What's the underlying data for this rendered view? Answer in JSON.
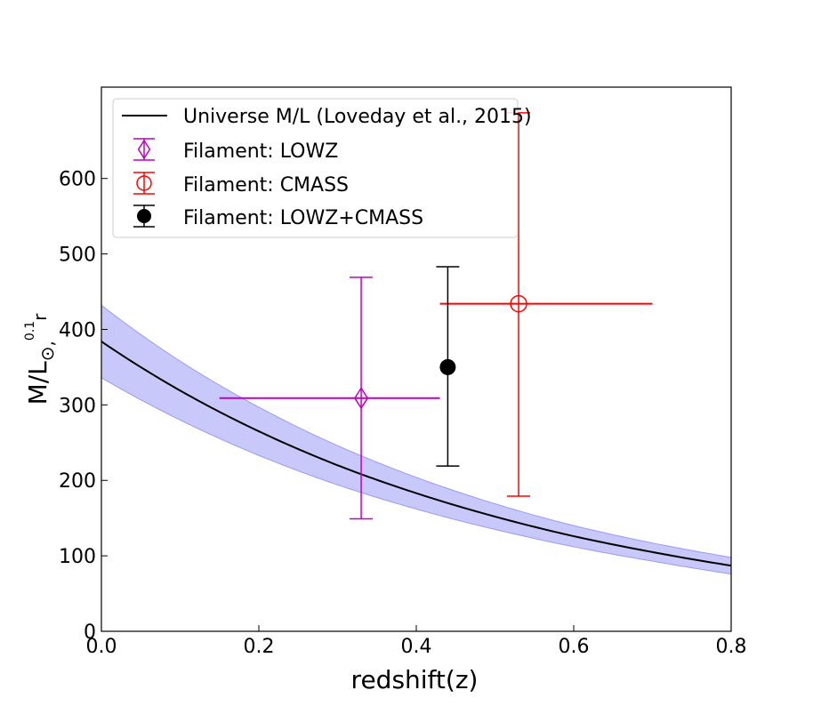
{
  "chart_data": {
    "type": "scatter",
    "xlabel": "redshift(z)",
    "ylabel": {
      "main": "M/L",
      "sub": "⊙,",
      "sup": "0.1",
      "subsub": "r"
    },
    "xlim": [
      0.0,
      0.8
    ],
    "ylim": [
      0,
      721
    ],
    "xticks": [
      "0.0",
      "0.2",
      "0.4",
      "0.6",
      "0.8"
    ],
    "xtick_values": [
      0.0,
      0.2,
      0.4,
      0.6,
      0.8
    ],
    "yticks": [
      "0",
      "100",
      "200",
      "300",
      "400",
      "500",
      "600"
    ],
    "ytick_values": [
      0,
      100,
      200,
      300,
      400,
      500,
      600
    ],
    "grid": false,
    "legend_position": "top-left",
    "model": {
      "name": "Universe M/L (Loveday et al., 2015)",
      "color": "#000000",
      "band_color": "#c8c8fa",
      "band_edge": "#9a9af5",
      "z": [
        0.0,
        0.1,
        0.2,
        0.3,
        0.4,
        0.5,
        0.6,
        0.7,
        0.8
      ],
      "y": [
        384,
        319,
        265,
        220,
        183,
        152,
        126,
        105,
        87
      ],
      "y_low": [
        336,
        280,
        233,
        194,
        162,
        135,
        112,
        93,
        76
      ],
      "y_high": [
        432,
        358,
        297,
        246,
        204,
        169,
        140,
        117,
        98
      ]
    },
    "series": [
      {
        "name": "Filament: LOWZ",
        "color": "#c000c0",
        "marker": "diamond-open",
        "x": 0.33,
        "y": 309,
        "x_range": [
          0.15,
          0.43
        ],
        "y_range": [
          149,
          469
        ]
      },
      {
        "name": "Filament: CMASS",
        "color": "#ff0000",
        "marker": "circle-open",
        "x": 0.53,
        "y": 434,
        "x_range": [
          0.43,
          0.7
        ],
        "y_range": [
          179,
          687
        ]
      },
      {
        "name": "Filament: LOWZ+CMASS",
        "color": "#000000",
        "marker": "circle-filled",
        "x": 0.44,
        "y": 350,
        "x_range": null,
        "y_range": [
          219,
          483
        ]
      }
    ]
  }
}
